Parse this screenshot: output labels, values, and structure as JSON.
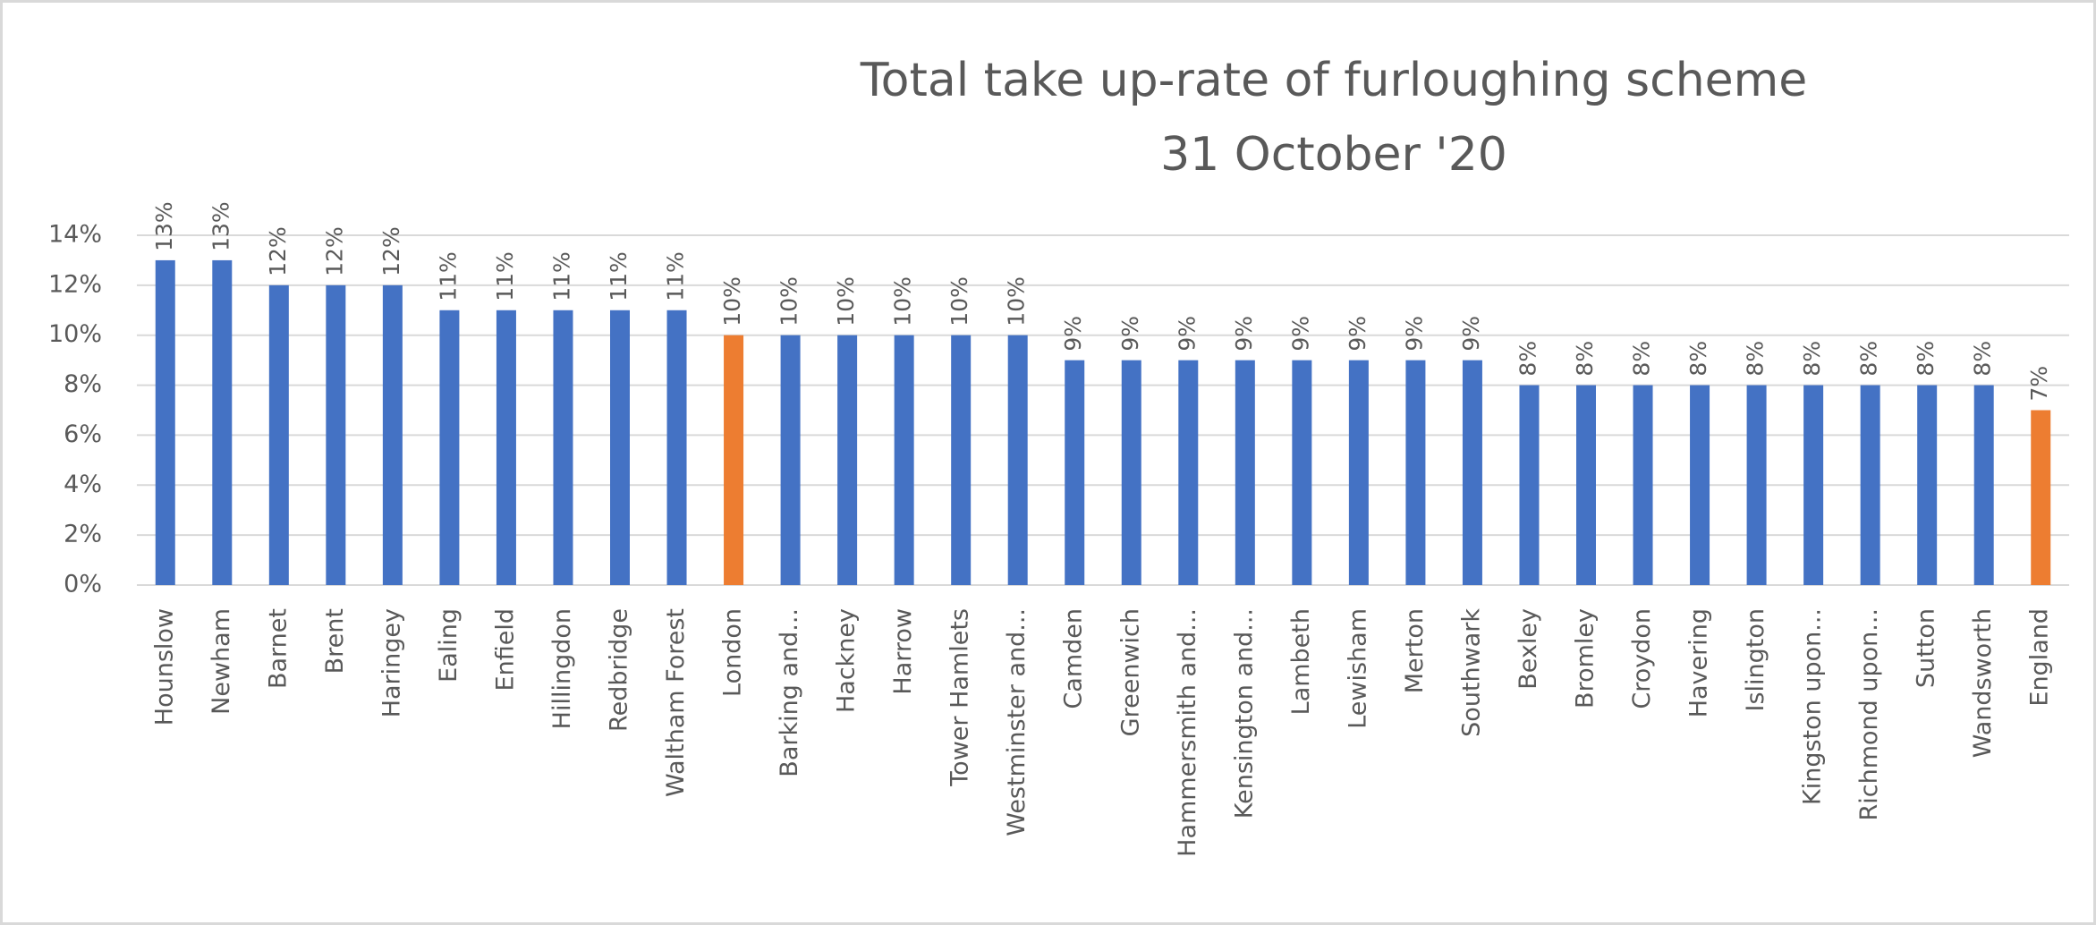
{
  "chart_data": {
    "type": "bar",
    "title": "Total take up-rate of furloughing scheme",
    "subtitle": "31 October '20",
    "categories": [
      "Hounslow",
      "Newham",
      "Barnet",
      "Brent",
      "Haringey",
      "Ealing",
      "Enfield",
      "Hillingdon",
      "Redbridge",
      "Waltham Forest",
      "London",
      "Barking and...",
      "Hackney",
      "Harrow",
      "Tower Hamlets",
      "Westminster and...",
      "Camden",
      "Greenwich",
      "Hammersmith and...",
      "Kensington and...",
      "Lambeth",
      "Lewisham",
      "Merton",
      "Southwark",
      "Bexley",
      "Bromley",
      "Croydon",
      "Havering",
      "Islington",
      "Kingston upon...",
      "Richmond upon...",
      "Sutton",
      "Wandsworth",
      "England"
    ],
    "values": [
      13,
      13,
      12,
      12,
      12,
      11,
      11,
      11,
      11,
      11,
      10,
      10,
      10,
      10,
      10,
      10,
      9,
      9,
      9,
      9,
      9,
      9,
      9,
      9,
      8,
      8,
      8,
      8,
      8,
      8,
      8,
      8,
      8,
      7
    ],
    "value_labels": [
      "13%",
      "13%",
      "12%",
      "12%",
      "12%",
      "11%",
      "11%",
      "11%",
      "11%",
      "11%",
      "10%",
      "10%",
      "10%",
      "10%",
      "10%",
      "10%",
      "9%",
      "9%",
      "9%",
      "9%",
      "9%",
      "9%",
      "9%",
      "9%",
      "8%",
      "8%",
      "8%",
      "8%",
      "8%",
      "8%",
      "8%",
      "8%",
      "8%",
      "7%"
    ],
    "colors": [
      "#4472c4",
      "#4472c4",
      "#4472c4",
      "#4472c4",
      "#4472c4",
      "#4472c4",
      "#4472c4",
      "#4472c4",
      "#4472c4",
      "#4472c4",
      "#ed7d31",
      "#4472c4",
      "#4472c4",
      "#4472c4",
      "#4472c4",
      "#4472c4",
      "#4472c4",
      "#4472c4",
      "#4472c4",
      "#4472c4",
      "#4472c4",
      "#4472c4",
      "#4472c4",
      "#4472c4",
      "#4472c4",
      "#4472c4",
      "#4472c4",
      "#4472c4",
      "#4472c4",
      "#4472c4",
      "#4472c4",
      "#4472c4",
      "#4472c4",
      "#ed7d31"
    ],
    "ylim": [
      0,
      14
    ],
    "yticks": [
      {
        "value": 0,
        "label": "0%"
      },
      {
        "value": 2,
        "label": "2%"
      },
      {
        "value": 4,
        "label": "4%"
      },
      {
        "value": 6,
        "label": "6%"
      },
      {
        "value": 8,
        "label": "8%"
      },
      {
        "value": 10,
        "label": "10%"
      },
      {
        "value": 12,
        "label": "12%"
      },
      {
        "value": 14,
        "label": "14%"
      }
    ],
    "grid": true
  }
}
